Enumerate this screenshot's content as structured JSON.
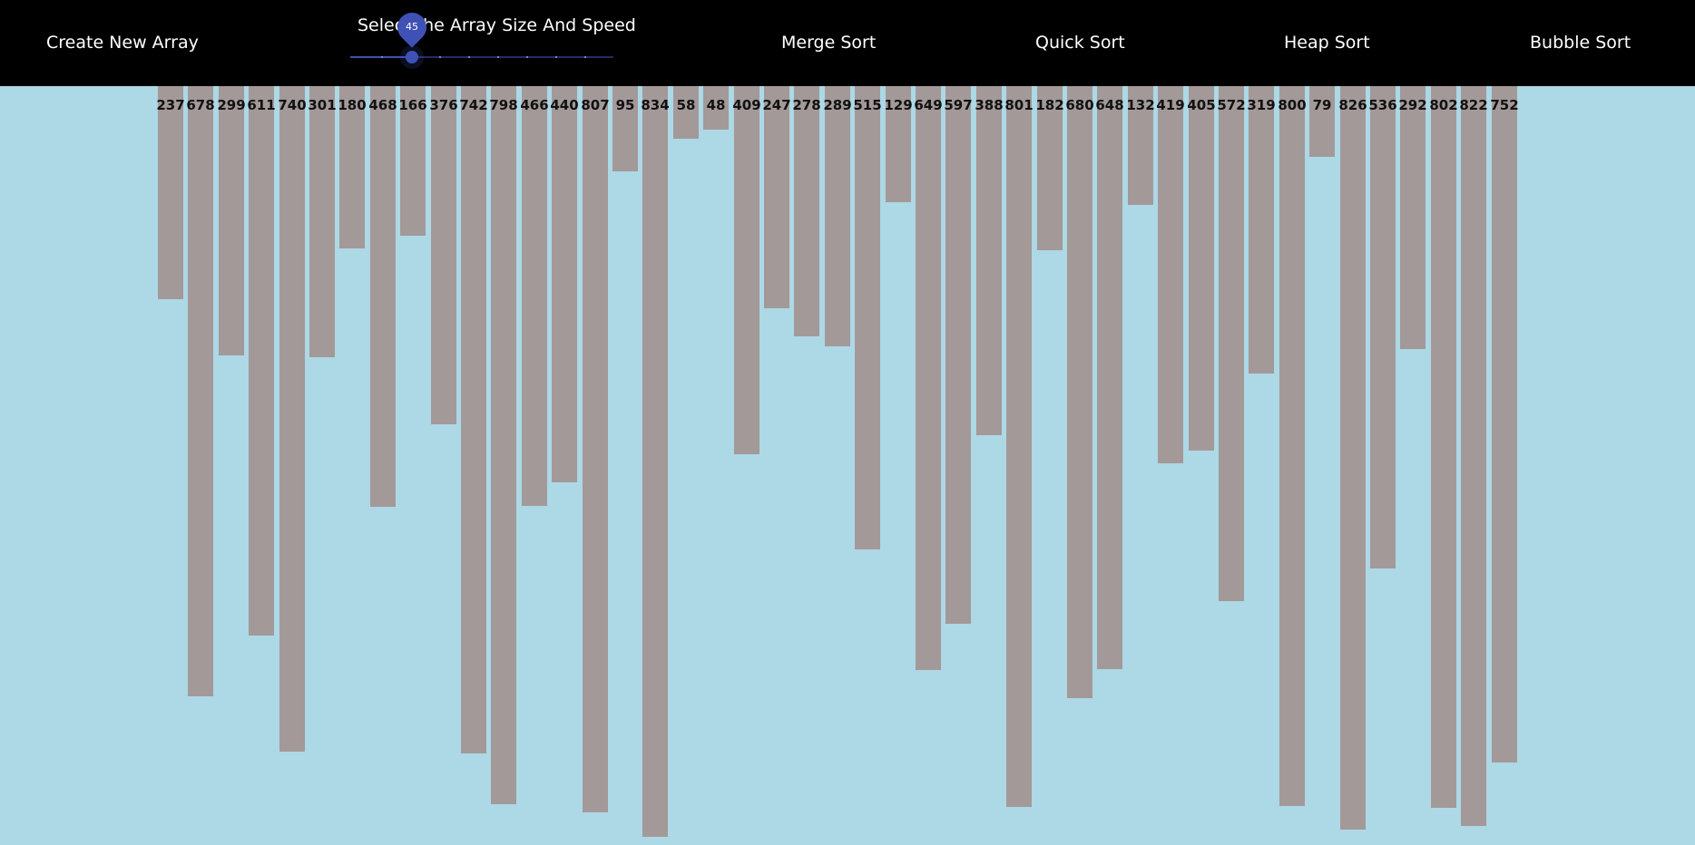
{
  "navbar": {
    "create_label": "Create New Array",
    "slider_title": "Select the Array Size And Speed",
    "slider_value": "45",
    "merge_label": "Merge Sort",
    "quick_label": "Quick Sort",
    "heap_label": "Heap Sort",
    "bubble_label": "Bubble Sort"
  },
  "colors": {
    "navbar_bg": "#000000",
    "page_bg": "#add8e6",
    "bar": "#a39998",
    "slider_accent": "#3f51b5"
  },
  "array": [
    237,
    678,
    299,
    611,
    740,
    301,
    180,
    468,
    166,
    376,
    742,
    798,
    466,
    440,
    807,
    95,
    834,
    58,
    48,
    409,
    247,
    278,
    289,
    515,
    129,
    649,
    597,
    388,
    801,
    182,
    680,
    648,
    132,
    419,
    405,
    572,
    319,
    800,
    79,
    826,
    536,
    292,
    802,
    822,
    752
  ]
}
